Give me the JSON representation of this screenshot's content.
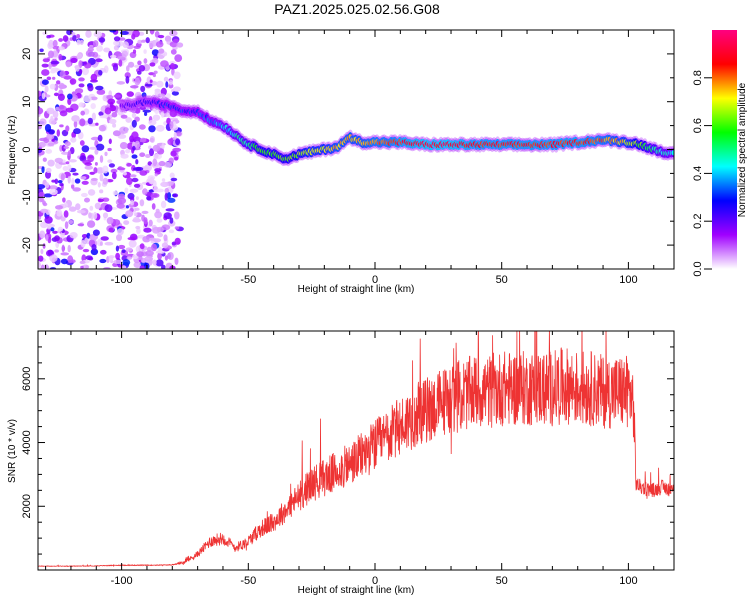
{
  "chart_data": [
    {
      "type": "heatmap",
      "title": "PAZ1.2025.025.02.56.G08",
      "xlabel": "Height of straight line (km)",
      "ylabel": "Frequency (Hz)",
      "xlim": [
        -133,
        118
      ],
      "ylim": [
        -25,
        25
      ],
      "x_ticks": [
        -100,
        -50,
        0,
        50,
        100
      ],
      "y_ticks": [
        -20,
        -10,
        0,
        10,
        20
      ],
      "colorbar": {
        "label": "Normalized spectral amplitude",
        "range": [
          0.0,
          1.0
        ],
        "ticks": [
          "0.0",
          "0.2",
          "0.4",
          "0.6",
          "0.8"
        ],
        "colormap": [
          "#ffffff",
          "#a000ff",
          "#0000ff",
          "#00ffff",
          "#00ff00",
          "#ffff00",
          "#ff0000",
          "#ff0080"
        ]
      },
      "ridge": {
        "x": [
          -100,
          -90,
          -80,
          -75,
          -70,
          -65,
          -60,
          -55,
          -50,
          -45,
          -40,
          -35,
          -30,
          -25,
          -20,
          -15,
          -10,
          -5,
          0,
          5,
          10,
          20,
          30,
          40,
          50,
          60,
          70,
          80,
          90,
          100,
          105,
          110,
          118
        ],
        "freq": [
          9,
          10,
          9,
          8,
          8,
          6,
          5,
          3,
          1,
          0,
          -1,
          -2,
          -1,
          -0.5,
          0,
          0.5,
          2.5,
          1.5,
          1.5,
          1.5,
          1.5,
          1,
          1,
          1,
          1,
          1,
          1,
          1.5,
          2,
          1.5,
          1,
          0,
          -1
        ],
        "amplitude": [
          0.2,
          0.25,
          0.3,
          0.3,
          0.3,
          0.35,
          0.4,
          0.45,
          0.5,
          0.6,
          0.6,
          0.6,
          0.65,
          0.7,
          0.7,
          0.75,
          0.75,
          0.75,
          0.8,
          0.8,
          0.85,
          0.9,
          0.9,
          0.85,
          0.85,
          0.85,
          0.85,
          0.85,
          0.8,
          0.7,
          0.6,
          0.5,
          0.4
        ]
      }
    },
    {
      "type": "line",
      "xlabel": "Height of straight line (km)",
      "ylabel": "SNR (10 * v/v)",
      "xlim": [
        -133,
        118
      ],
      "ylim": [
        0,
        7500
      ],
      "x_ticks": [
        -100,
        -50,
        0,
        50,
        100
      ],
      "y_ticks": [
        2000,
        4000,
        6000
      ],
      "color": "#ee3333",
      "series": [
        {
          "x": [
            -133,
            -120,
            -110,
            -100,
            -90,
            -80,
            -75,
            -70,
            -65,
            -60,
            -55,
            -50,
            -45,
            -40,
            -35,
            -30,
            -25,
            -20,
            -15,
            -10,
            -5,
            0,
            5,
            10,
            15,
            20,
            25,
            30,
            35,
            40,
            45,
            50,
            55,
            60,
            65,
            70,
            75,
            80,
            85,
            90,
            95,
            100,
            101,
            102,
            103,
            105,
            110,
            113,
            118
          ],
          "values": [
            120,
            120,
            130,
            150,
            150,
            160,
            250,
            500,
            900,
            1000,
            700,
            900,
            1300,
            1500,
            1900,
            2300,
            2700,
            2900,
            3100,
            3300,
            3600,
            3900,
            4200,
            4500,
            4800,
            5000,
            5200,
            5400,
            5500,
            5600,
            5600,
            5700,
            5700,
            5700,
            5700,
            5700,
            5800,
            5700,
            5700,
            5600,
            5600,
            5600,
            5500,
            5200,
            2700,
            2600,
            2500,
            2600,
            2500
          ]
        }
      ]
    }
  ]
}
